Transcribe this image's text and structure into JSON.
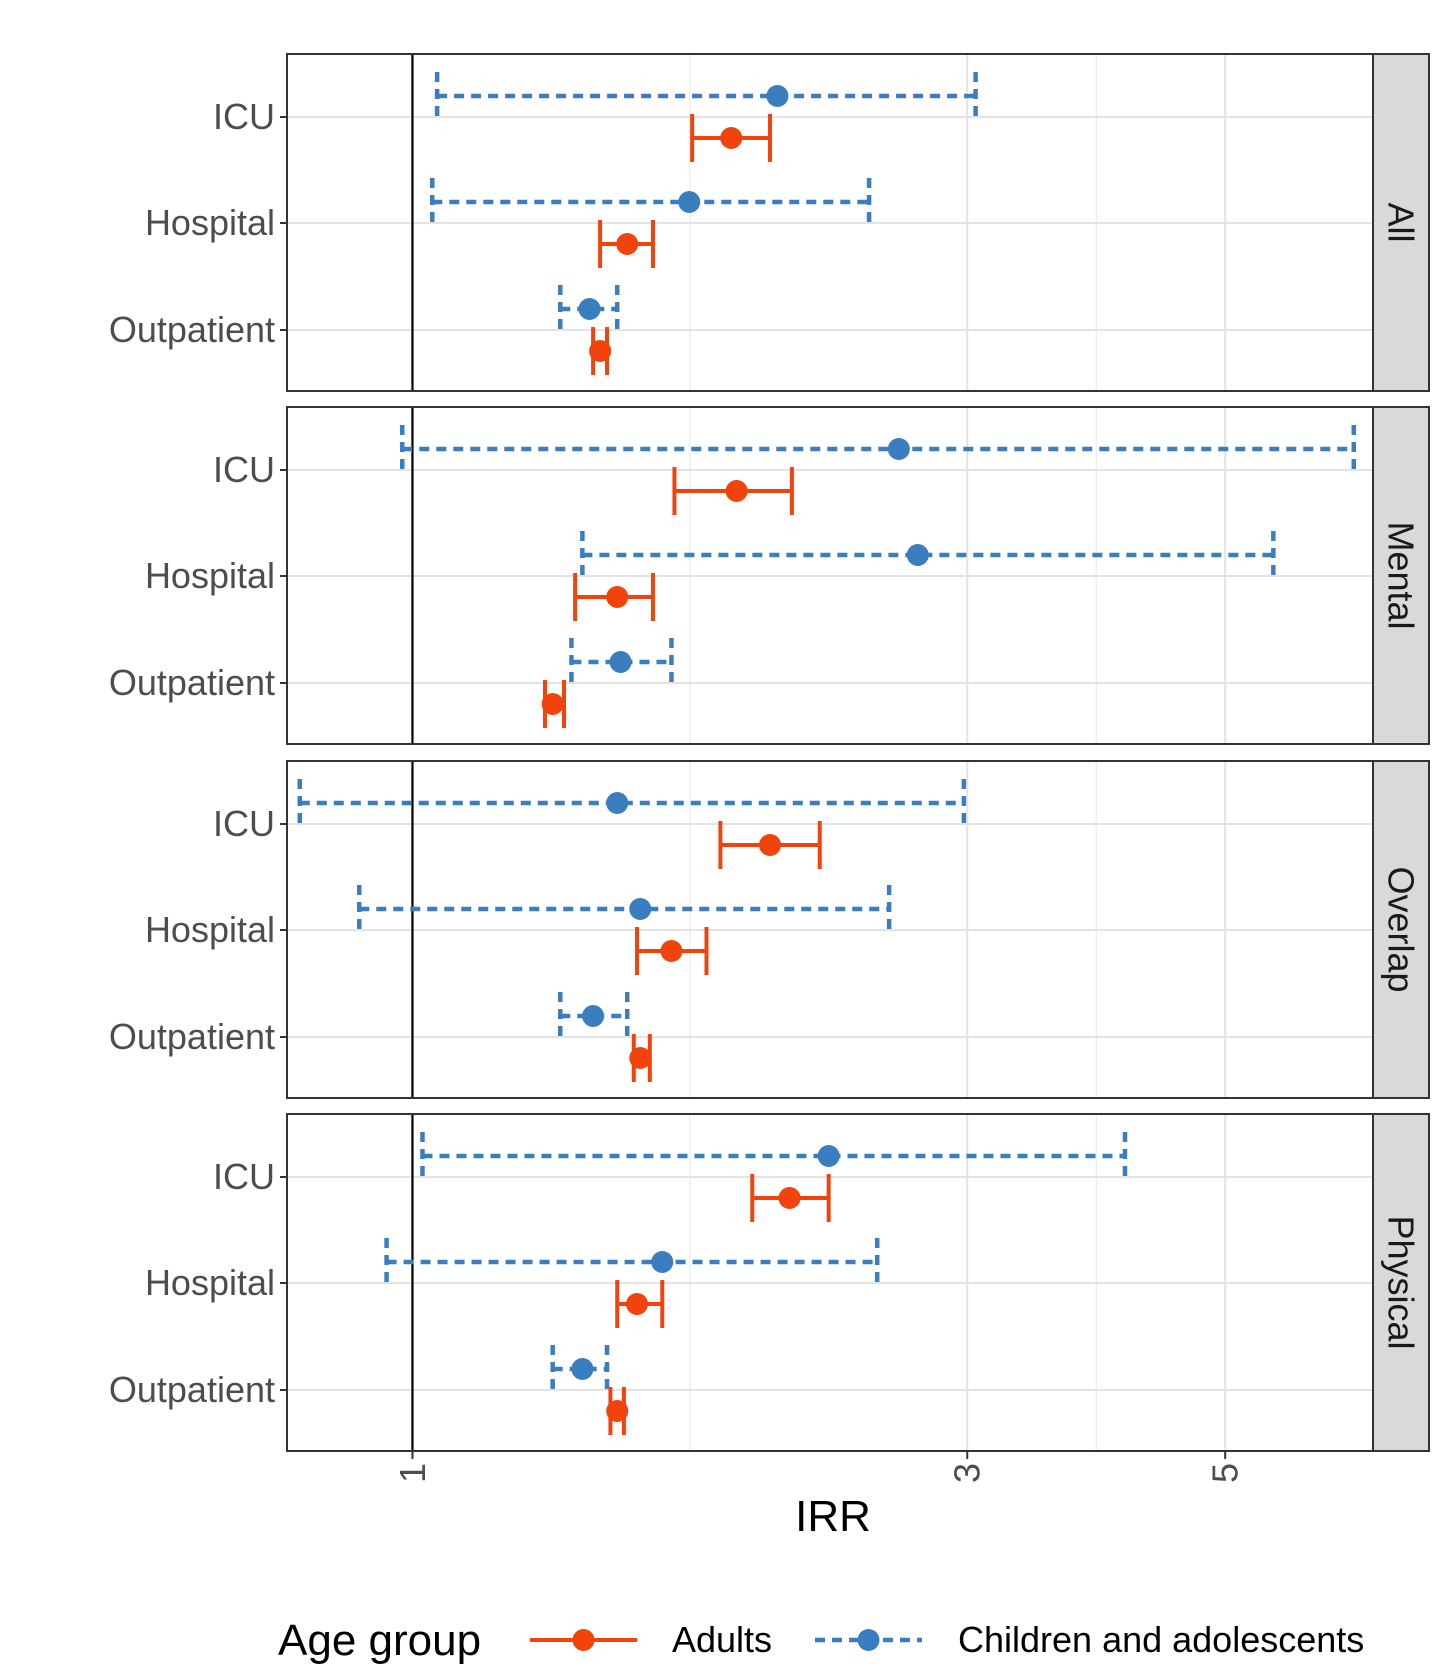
{
  "chart_data": {
    "type": "forest",
    "xlabel": "IRR",
    "x_scale": "log",
    "x_ticks": [
      "1",
      "3",
      "5"
    ],
    "x_tick_values": [
      1,
      3,
      5
    ],
    "xlim": [
      0.78,
      6.7
    ],
    "y_categories": [
      "ICU",
      "Hospital",
      "Outpatient"
    ],
    "grid": true,
    "legend": {
      "position": "bottom",
      "title": "Age group",
      "entries": [
        {
          "name": "Adults",
          "color": "#f0440c",
          "line": "solid"
        },
        {
          "name": "Children and adolescents",
          "color": "#3a7ebf",
          "line": "dashed"
        }
      ]
    },
    "panels": [
      {
        "label": "All",
        "rows": [
          {
            "category": "ICU",
            "Adults": {
              "est": 1.88,
              "lo": 1.74,
              "hi": 2.03
            },
            "Children and adolescents": {
              "est": 2.06,
              "lo": 1.05,
              "hi": 3.05
            }
          },
          {
            "category": "Hospital",
            "Adults": {
              "est": 1.53,
              "lo": 1.45,
              "hi": 1.61
            },
            "Children and adolescents": {
              "est": 1.73,
              "lo": 1.04,
              "hi": 2.47
            }
          },
          {
            "category": "Outpatient",
            "Adults": {
              "est": 1.45,
              "lo": 1.43,
              "hi": 1.47
            },
            "Children and adolescents": {
              "est": 1.42,
              "lo": 1.34,
              "hi": 1.5
            }
          }
        ]
      },
      {
        "label": "Mental",
        "rows": [
          {
            "category": "ICU",
            "Adults": {
              "est": 1.9,
              "lo": 1.68,
              "hi": 2.12
            },
            "Children and adolescents": {
              "est": 2.62,
              "lo": 0.98,
              "hi": 6.45
            }
          },
          {
            "category": "Hospital",
            "Adults": {
              "est": 1.5,
              "lo": 1.38,
              "hi": 1.61
            },
            "Children and adolescents": {
              "est": 2.72,
              "lo": 1.4,
              "hi": 5.5
            }
          },
          {
            "category": "Outpatient",
            "Adults": {
              "est": 1.32,
              "lo": 1.3,
              "hi": 1.35
            },
            "Children and adolescents": {
              "est": 1.51,
              "lo": 1.37,
              "hi": 1.67
            }
          }
        ]
      },
      {
        "label": "Overlap",
        "rows": [
          {
            "category": "ICU",
            "Adults": {
              "est": 2.03,
              "lo": 1.84,
              "hi": 2.24
            },
            "Children and adolescents": {
              "est": 1.5,
              "lo": 0.8,
              "hi": 2.98
            }
          },
          {
            "category": "Hospital",
            "Adults": {
              "est": 1.67,
              "lo": 1.56,
              "hi": 1.79
            },
            "Children and adolescents": {
              "est": 1.57,
              "lo": 0.9,
              "hi": 2.57
            }
          },
          {
            "category": "Outpatient",
            "Adults": {
              "est": 1.57,
              "lo": 1.55,
              "hi": 1.6
            },
            "Children and adolescents": {
              "est": 1.43,
              "lo": 1.34,
              "hi": 1.53
            }
          }
        ]
      },
      {
        "label": "Physical",
        "rows": [
          {
            "category": "ICU",
            "Adults": {
              "est": 2.11,
              "lo": 1.96,
              "hi": 2.28
            },
            "Children and adolescents": {
              "est": 2.28,
              "lo": 1.02,
              "hi": 4.1
            }
          },
          {
            "category": "Hospital",
            "Adults": {
              "est": 1.56,
              "lo": 1.5,
              "hi": 1.64
            },
            "Children and adolescents": {
              "est": 1.64,
              "lo": 0.95,
              "hi": 2.51
            }
          },
          {
            "category": "Outpatient",
            "Adults": {
              "est": 1.5,
              "lo": 1.48,
              "hi": 1.52
            },
            "Children and adolescents": {
              "est": 1.4,
              "lo": 1.32,
              "hi": 1.47
            }
          }
        ]
      }
    ]
  }
}
